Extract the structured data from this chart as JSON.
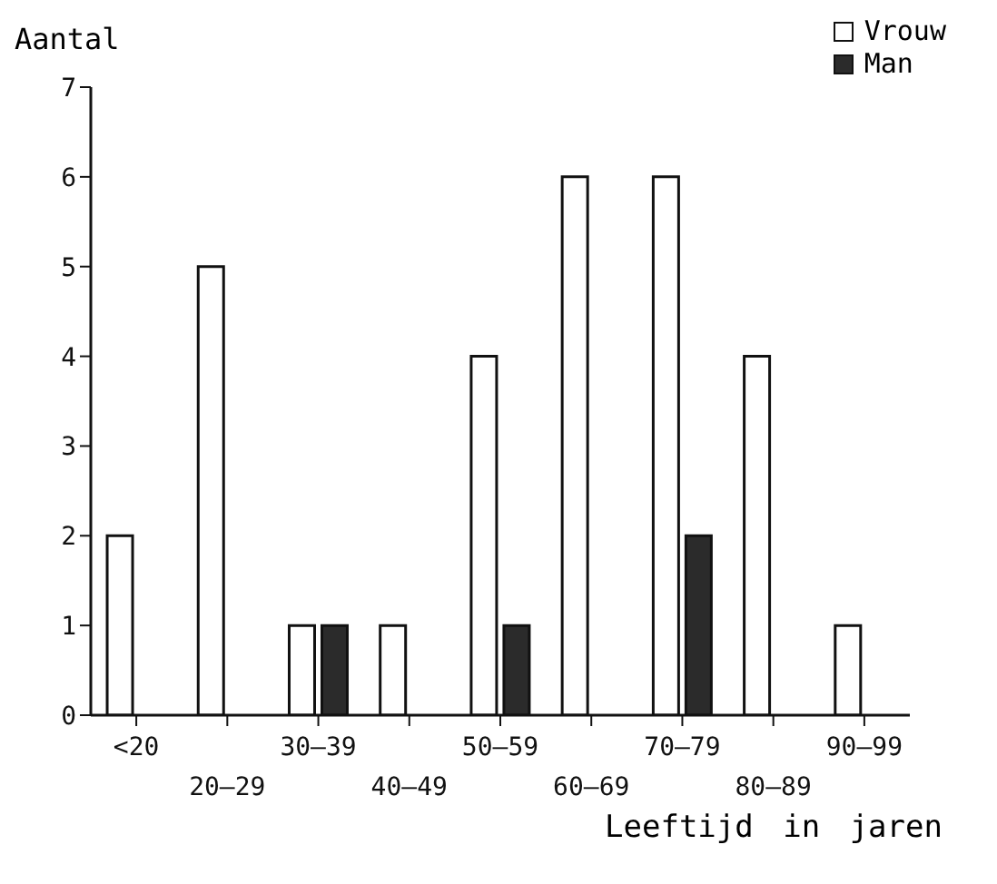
{
  "chart_data": {
    "type": "bar",
    "ylabel": "Aantal",
    "xlabel": "Leeftijd in jaren",
    "categories": [
      "<20",
      "20–29",
      "30–39",
      "40–49",
      "50–59",
      "60–69",
      "70–79",
      "80–89",
      "90–99"
    ],
    "series": [
      {
        "name": "Vrouw",
        "color": "#ffffff",
        "values": [
          2,
          5,
          1,
          1,
          4,
          6,
          6,
          4,
          1
        ]
      },
      {
        "name": "Man",
        "color": "#2b2b2b",
        "values": [
          0,
          0,
          1,
          0,
          1,
          0,
          2,
          0,
          0
        ]
      }
    ],
    "ylim": [
      0,
      7
    ],
    "yticks": [
      0,
      1,
      2,
      3,
      4,
      5,
      6,
      7
    ],
    "grid": false,
    "legend": "top right"
  }
}
